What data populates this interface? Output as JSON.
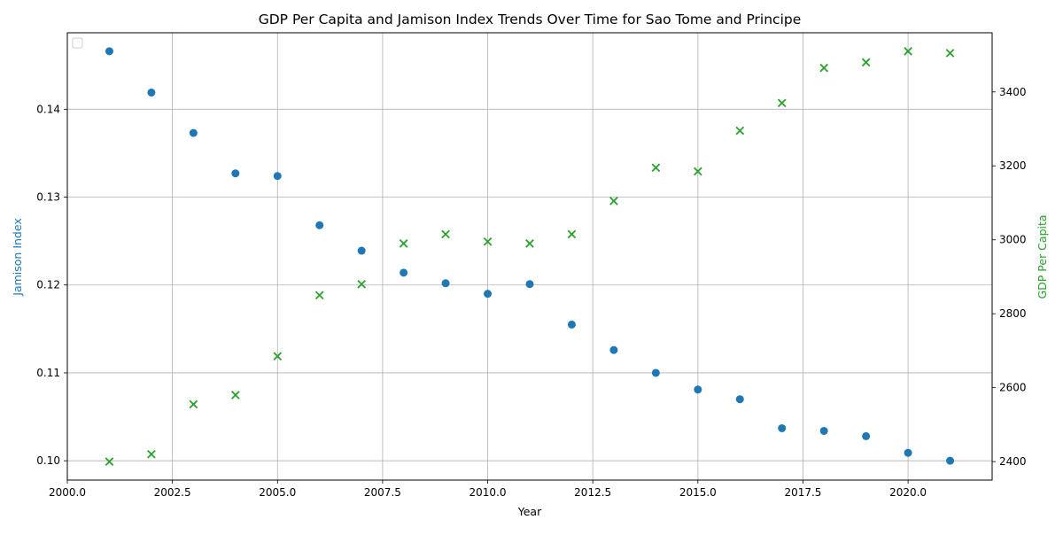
{
  "chart_data": {
    "type": "scatter",
    "title": "GDP Per Capita and Jamison Index Trends Over Time for Sao Tome and Principe",
    "xlabel": "Year",
    "ylabel_left": "Jamison Index",
    "ylabel_right": "GDP Per Capita",
    "x_ticks": [
      "2000.0",
      "2002.5",
      "2005.0",
      "2007.5",
      "2010.0",
      "2012.5",
      "2015.0",
      "2017.5",
      "2020.0"
    ],
    "y_left_ticks": [
      "0.10",
      "0.11",
      "0.12",
      "0.13",
      "0.14"
    ],
    "y_right_ticks": [
      "2400",
      "2600",
      "2800",
      "3000",
      "3200",
      "3400"
    ],
    "xlim": [
      2000,
      2022
    ],
    "ylim_left": [
      0.0978,
      0.1487
    ],
    "ylim_right": [
      2350,
      3560
    ],
    "grid": true,
    "legend": "top-left (empty)",
    "colors": {
      "jamison": "#1f77b4",
      "gdp": "#2ca02c",
      "grid": "#b0b0b0",
      "axis": "#000000"
    },
    "x": [
      2001,
      2002,
      2003,
      2004,
      2005,
      2006,
      2007,
      2008,
      2009,
      2010,
      2011,
      2012,
      2013,
      2014,
      2015,
      2016,
      2017,
      2018,
      2019,
      2020,
      2021
    ],
    "series": [
      {
        "axis": "left",
        "marker": "circle",
        "values": [
          0.1466,
          0.1419,
          0.1373,
          0.1327,
          0.1324,
          0.1268,
          0.1239,
          0.1214,
          0.1202,
          0.119,
          0.1201,
          0.1155,
          0.1126,
          0.11,
          0.1081,
          0.107,
          0.1037,
          0.1034,
          0.1028,
          0.1009,
          0.1
        ]
      },
      {
        "axis": "right",
        "marker": "x",
        "values": [
          2400,
          2420,
          2555,
          2580,
          2685,
          2850,
          2880,
          2990,
          3015,
          2995,
          2990,
          3015,
          3105,
          3195,
          3185,
          3295,
          3370,
          3465,
          3480,
          3510,
          3505
        ]
      }
    ]
  }
}
